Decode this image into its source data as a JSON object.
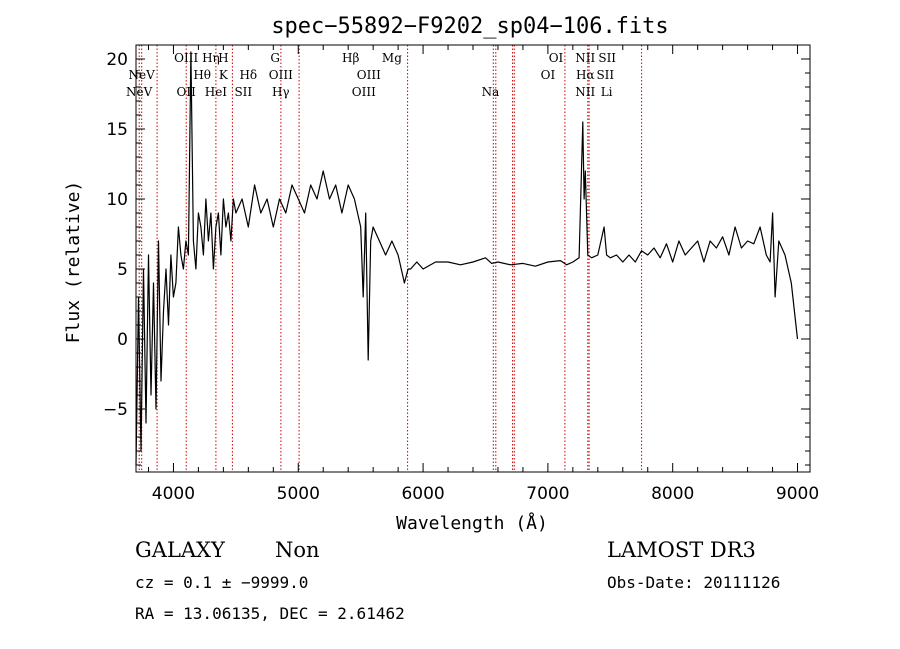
{
  "chart_data": {
    "type": "line",
    "title": "spec−55892−F9202_sp04−106.fits",
    "xlabel": "Wavelength (Å)",
    "ylabel": "Flux (relative)",
    "xlim": [
      3700,
      9100
    ],
    "ylim": [
      -9.5,
      21
    ],
    "xticks": [
      4000,
      5000,
      6000,
      7000,
      8000,
      9000
    ],
    "yticks": [
      -5,
      0,
      5,
      10,
      15,
      20
    ],
    "xtick_labels": [
      "4000",
      "5000",
      "6000",
      "7000",
      "8000",
      "9000"
    ],
    "ytick_labels": [
      "−5",
      "0",
      "5",
      "10",
      "15",
      "20"
    ],
    "grid": false,
    "spectrum": {
      "color": "#000000",
      "x": [
        3700,
        3720,
        3740,
        3760,
        3780,
        3800,
        3820,
        3840,
        3860,
        3880,
        3900,
        3920,
        3940,
        3960,
        3980,
        4000,
        4020,
        4040,
        4060,
        4080,
        4100,
        4120,
        4140,
        4160,
        4180,
        4200,
        4220,
        4240,
        4260,
        4280,
        4300,
        4320,
        4340,
        4360,
        4380,
        4400,
        4420,
        4440,
        4460,
        4480,
        4500,
        4550,
        4600,
        4650,
        4700,
        4750,
        4800,
        4850,
        4900,
        4950,
        5000,
        5050,
        5100,
        5150,
        5200,
        5250,
        5300,
        5350,
        5400,
        5450,
        5500,
        5520,
        5540,
        5560,
        5580,
        5600,
        5650,
        5700,
        5750,
        5800,
        5850,
        5880,
        5900,
        5950,
        6000,
        6100,
        6200,
        6300,
        6400,
        6500,
        6550,
        6600,
        6700,
        6800,
        6900,
        7000,
        7100,
        7150,
        7200,
        7250,
        7280,
        7290,
        7300,
        7320,
        7350,
        7400,
        7450,
        7470,
        7500,
        7550,
        7600,
        7650,
        7700,
        7750,
        7800,
        7850,
        7900,
        7950,
        8000,
        8050,
        8100,
        8150,
        8200,
        8250,
        8300,
        8350,
        8400,
        8450,
        8500,
        8550,
        8600,
        8650,
        8700,
        8750,
        8780,
        8800,
        8820,
        8850,
        8900,
        8950,
        9000
      ],
      "y": [
        -9,
        3,
        -8,
        5,
        -6,
        6,
        -4,
        4,
        -5,
        7,
        -3,
        2,
        5,
        1,
        6,
        3,
        4,
        8,
        6,
        5,
        7,
        6,
        20.5,
        7,
        5,
        9,
        8,
        6,
        10,
        7,
        9,
        5,
        8,
        9,
        6,
        10,
        8,
        9,
        7,
        10,
        9,
        10,
        8,
        11,
        9,
        10,
        8,
        10,
        9,
        11,
        10,
        9,
        11,
        10,
        12,
        10,
        11,
        9,
        11,
        10,
        8,
        3,
        9,
        -1.5,
        7,
        8,
        7,
        6,
        7,
        6,
        4,
        5,
        5,
        5.5,
        5,
        5.5,
        5.5,
        5.3,
        5.5,
        5.8,
        5.4,
        5.5,
        5.3,
        5.4,
        5.2,
        5.5,
        5.6,
        5.3,
        5.5,
        5.8,
        15.5,
        10,
        12,
        6,
        5.8,
        6,
        8,
        6,
        5.8,
        6,
        5.5,
        6,
        5.5,
        6.3,
        6,
        6.5,
        5.8,
        6.8,
        5.5,
        7,
        6,
        6.5,
        7,
        5.5,
        7,
        6.5,
        7.3,
        6,
        8,
        6.5,
        7,
        6.8,
        8,
        6,
        5.5,
        9,
        3,
        7,
        6,
        4,
        0
      ]
    },
    "lines": {
      "color": "#cc0000",
      "wavelengths": [
        3726,
        3746,
        3869,
        4102,
        4340,
        4472,
        4861,
        5007,
        5876,
        6563,
        6583,
        6717,
        6731,
        7136,
        7320,
        7330,
        7751
      ],
      "marks": [
        {
          "x": 3726,
          "row": 3,
          "text": "NeV"
        },
        {
          "x": 3746,
          "row": 2,
          "text": "NeV"
        },
        {
          "x": 4102,
          "row": 3,
          "text": "OII"
        },
        {
          "x": 4102,
          "row": 1,
          "text": "OIII"
        },
        {
          "x": 4230,
          "row": 2,
          "text": "Hθ"
        },
        {
          "x": 4300,
          "row": 1,
          "text": "Hη"
        },
        {
          "x": 4340,
          "row": 3,
          "text": "HeI"
        },
        {
          "x": 4400,
          "row": 1,
          "text": "H"
        },
        {
          "x": 4400,
          "row": 2,
          "text": "K"
        },
        {
          "x": 4600,
          "row": 2,
          "text": "Hδ"
        },
        {
          "x": 4560,
          "row": 3,
          "text": "SII"
        },
        {
          "x": 4815,
          "row": 1,
          "text": "G"
        },
        {
          "x": 4860,
          "row": 2,
          "text": "OIII"
        },
        {
          "x": 4860,
          "row": 3,
          "text": "Hγ"
        },
        {
          "x": 5420,
          "row": 1,
          "text": "Hβ"
        },
        {
          "x": 5565,
          "row": 2,
          "text": "OIII"
        },
        {
          "x": 5525,
          "row": 3,
          "text": "OIII"
        },
        {
          "x": 5750,
          "row": 1,
          "text": "Mg"
        },
        {
          "x": 6540,
          "row": 3,
          "text": "Na"
        },
        {
          "x": 7065,
          "row": 1,
          "text": "OI"
        },
        {
          "x": 7000,
          "row": 2,
          "text": "OI"
        },
        {
          "x": 7300,
          "row": 1,
          "text": "NII"
        },
        {
          "x": 7300,
          "row": 2,
          "text": "Hα"
        },
        {
          "x": 7300,
          "row": 3,
          "text": "NII"
        },
        {
          "x": 7475,
          "row": 1,
          "text": "SII"
        },
        {
          "x": 7460,
          "row": 2,
          "text": "SII"
        },
        {
          "x": 7470,
          "row": 3,
          "text": "Li"
        }
      ]
    }
  },
  "footer": {
    "object_type": "GALAXY",
    "subclass": "Non",
    "survey": "LAMOST DR3",
    "redshift_line": "cz = 0.1 ± −9999.0",
    "obs_date_line": "Obs-Date: 20111126",
    "coords_line": "RA =  13.06135, DEC =   2.61462"
  }
}
